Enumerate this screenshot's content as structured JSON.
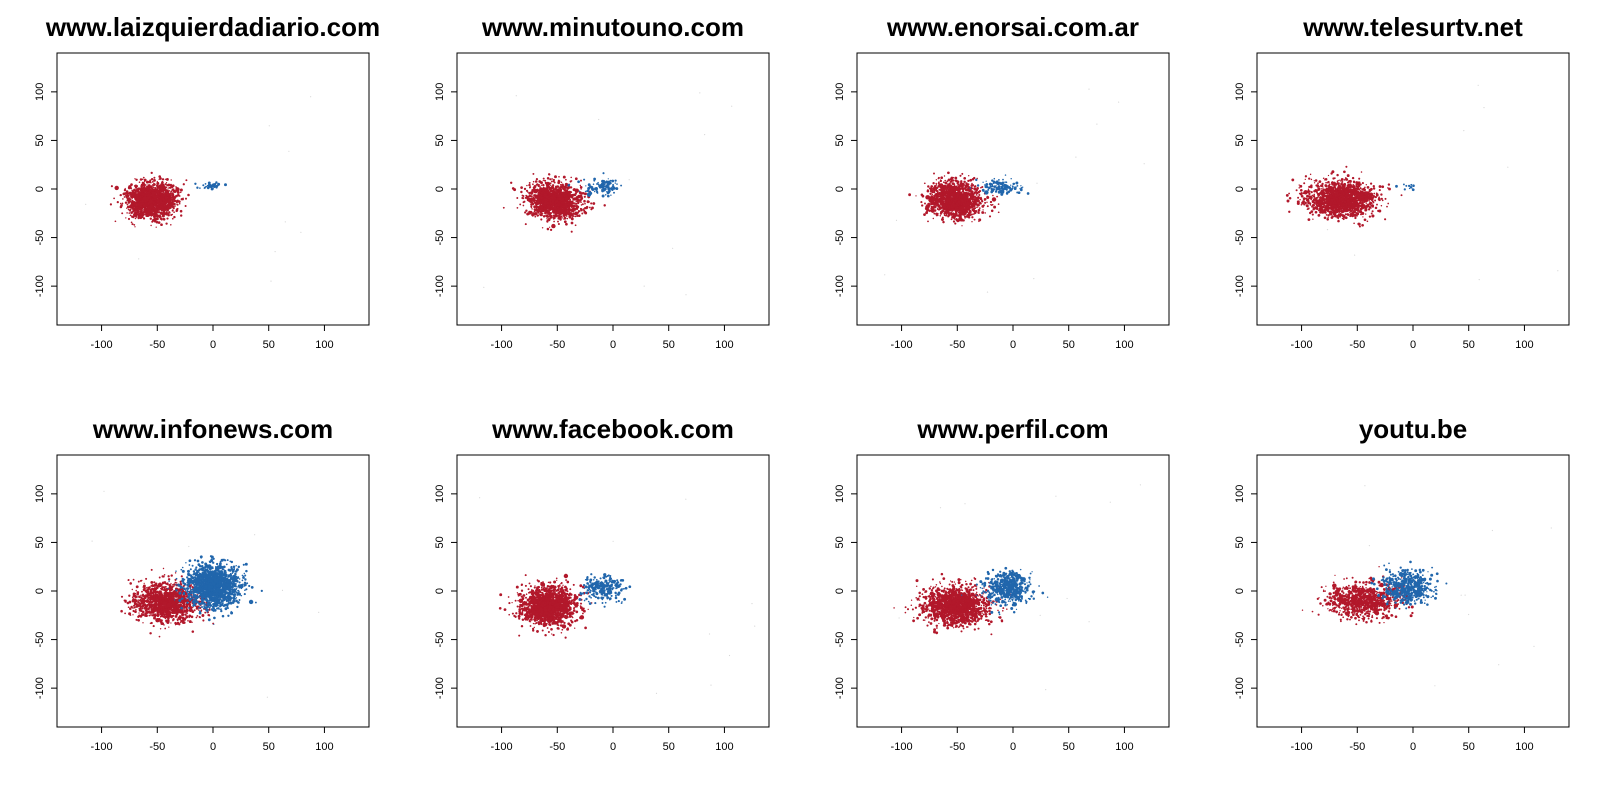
{
  "chart_data": {
    "type": "scatter",
    "xlim": [
      -140,
      140
    ],
    "ylim": [
      -140,
      140
    ],
    "x_ticks": [
      -100,
      -50,
      0,
      50,
      100
    ],
    "y_ticks": [
      -100,
      -50,
      0,
      50,
      100
    ],
    "x_tick_labels": [
      "-100",
      "-50",
      "0",
      "50",
      "100"
    ],
    "y_tick_labels": [
      "-100",
      "-50",
      "0",
      "50",
      "100"
    ],
    "colors": {
      "red_group": "#b2182b",
      "blue_group": "#2166ac"
    },
    "panels": [
      {
        "title": "www.laizquierdadiario.com",
        "red_cluster": {
          "center": [
            -55,
            -12
          ],
          "spread": [
            11,
            9
          ],
          "count": 1500
        },
        "blue_cluster": {
          "center": [
            -2,
            3
          ],
          "spread": [
            6,
            2
          ],
          "count": 35
        }
      },
      {
        "title": "www.minutouno.com",
        "red_cluster": {
          "center": [
            -52,
            -12
          ],
          "spread": [
            12,
            9
          ],
          "count": 1400
        },
        "blue_cluster": {
          "center": [
            -10,
            2
          ],
          "spread": [
            9,
            4
          ],
          "count": 120
        }
      },
      {
        "title": "www.enorsai.com.ar",
        "red_cluster": {
          "center": [
            -52,
            -12
          ],
          "spread": [
            12,
            9
          ],
          "count": 1400
        },
        "blue_cluster": {
          "center": [
            -10,
            2
          ],
          "spread": [
            9,
            4
          ],
          "count": 120
        }
      },
      {
        "title": "www.telesurtv.net",
        "red_cluster": {
          "center": [
            -65,
            -10
          ],
          "spread": [
            15,
            9
          ],
          "count": 1600
        },
        "blue_cluster": {
          "center": [
            -5,
            3
          ],
          "spread": [
            5,
            2
          ],
          "count": 12
        }
      },
      {
        "title": "www.infonews.com",
        "red_cluster": {
          "center": [
            -42,
            -12
          ],
          "spread": [
            15,
            10
          ],
          "count": 1300
        },
        "blue_cluster": {
          "center": [
            0,
            5
          ],
          "spread": [
            12,
            11
          ],
          "count": 1500
        }
      },
      {
        "title": "www.facebook.com",
        "red_cluster": {
          "center": [
            -58,
            -15
          ],
          "spread": [
            12,
            10
          ],
          "count": 1600
        },
        "blue_cluster": {
          "center": [
            -8,
            3
          ],
          "spread": [
            10,
            6
          ],
          "count": 260
        }
      },
      {
        "title": "www.perfil.com",
        "red_cluster": {
          "center": [
            -52,
            -15
          ],
          "spread": [
            14,
            10
          ],
          "count": 1500
        },
        "blue_cluster": {
          "center": [
            -5,
            3
          ],
          "spread": [
            10,
            8
          ],
          "count": 500
        }
      },
      {
        "title": "youtu.be",
        "red_cluster": {
          "center": [
            -45,
            -10
          ],
          "spread": [
            16,
            9
          ],
          "count": 900
        },
        "blue_cluster": {
          "center": [
            -5,
            4
          ],
          "spread": [
            11,
            8
          ],
          "count": 500
        }
      }
    ]
  }
}
